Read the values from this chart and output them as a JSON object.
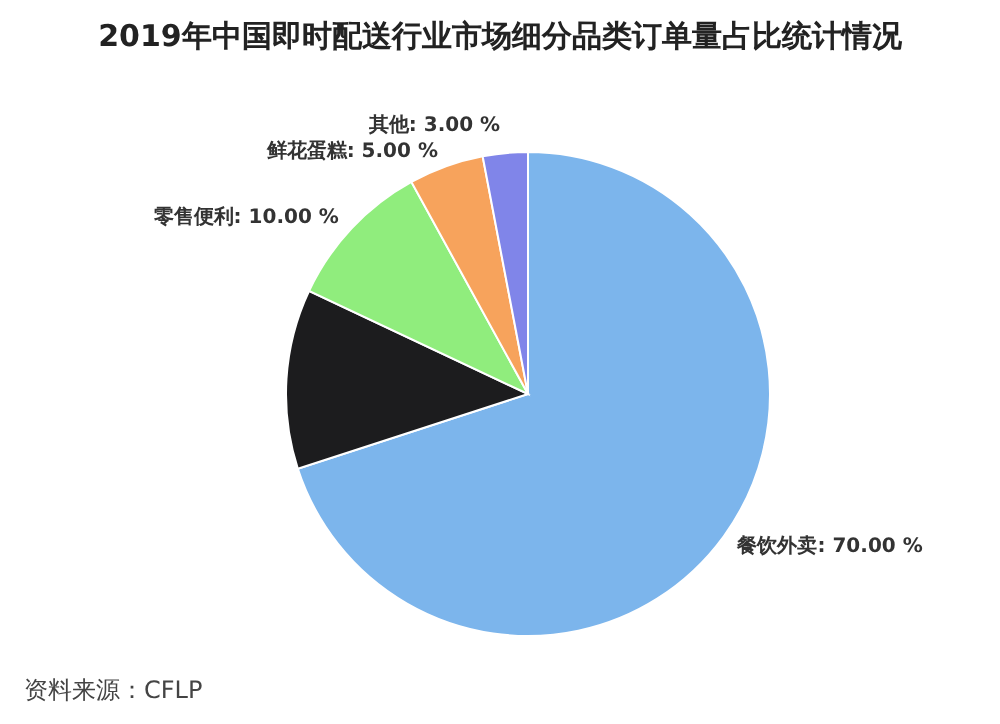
{
  "chart_data": {
    "type": "pie",
    "title": "2019年中国即时配送行业市场细分品类订单量占比统计情况",
    "categories": [
      "餐饮外卖",
      null,
      "零售便利",
      "鲜花蛋糕",
      "其他"
    ],
    "values": [
      70,
      12,
      10,
      5,
      3
    ],
    "colors": [
      "#7cb5ec",
      "#1c1c1e",
      "#90ed7d",
      "#f7a35c",
      "#8085e9"
    ],
    "value_labels": [
      "70.00 %",
      null,
      "10.00 %",
      "5.00 %",
      "3.00 %"
    ],
    "annotations": [
      "资料来源：CFLP"
    ]
  }
}
